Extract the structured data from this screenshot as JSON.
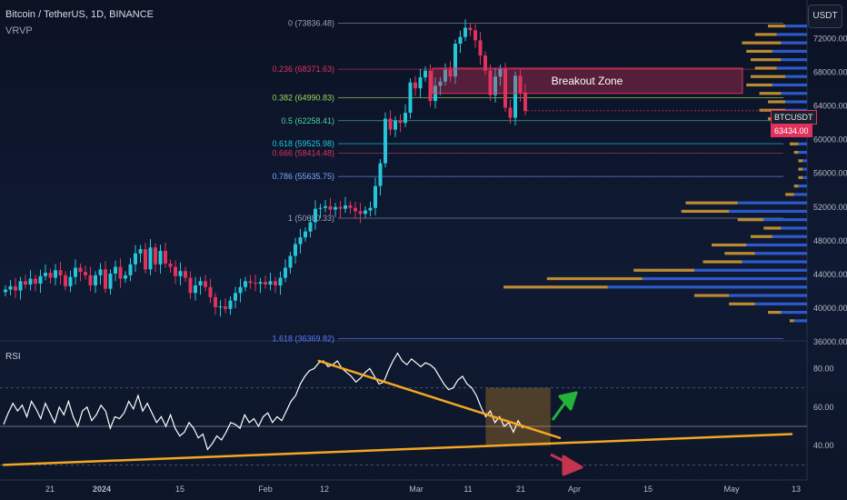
{
  "header": {
    "title": "Bitcoin / TetherUS, 1D, BINANCE",
    "indicator": "VRVP",
    "currency_button": "USDT",
    "symbol_tag": "BTCUSDT",
    "price_tag": "63434.00"
  },
  "annotations": {
    "breakout_zone": "Breakout Zone",
    "rsi_label": "RSI"
  },
  "colors": {
    "bull": "#26c6da",
    "bear": "#e0325c",
    "trend": "#f5a623",
    "vol_up": "#3366e6",
    "vol_down": "#d9a032",
    "arrow_up": "#22b33a",
    "arrow_down": "#c4344f"
  },
  "chart_data": [
    {
      "type": "candlestick",
      "title": "Bitcoin / TetherUS, 1D, BINANCE",
      "ylim": [
        36000,
        74000
      ],
      "y_ticks": [
        "36000.00",
        "40000.00",
        "44000.00",
        "48000.00",
        "52000.00",
        "56000.00",
        "60000.00",
        "64000.00",
        "68000.00",
        "72000.00"
      ],
      "x_ticks": [
        "21",
        "2024",
        "15",
        "Feb",
        "12",
        "Mar",
        "11",
        "21",
        "Apr",
        "15",
        "May",
        "13"
      ],
      "fib_levels": [
        {
          "label": "0 (73836.48)",
          "value": 73836.48,
          "color": "#9aa1ad"
        },
        {
          "label": "0.236 (68371.63)",
          "value": 68371.63,
          "color": "#e0325c"
        },
        {
          "label": "0.382 (64990.83)",
          "value": 64990.83,
          "color": "#9fd65a"
        },
        {
          "label": "0.5 (62258.41)",
          "value": 62258.41,
          "color": "#4fd1a5"
        },
        {
          "label": "0.618 (59525.98)",
          "value": 59525.98,
          "color": "#26c6da"
        },
        {
          "label": "0.666 (58414.48)",
          "value": 58414.48,
          "color": "#e0325c"
        },
        {
          "label": "0.786 (55635.75)",
          "value": 55635.75,
          "color": "#7fa6ff"
        },
        {
          "label": "1 (50680.33)",
          "value": 50680.33,
          "color": "#9aa1ad"
        },
        {
          "label": "1.618 (36369.82)",
          "value": 36369.82,
          "color": "#5b7cff"
        }
      ],
      "breakout_zone": {
        "low": 65500,
        "high": 68500
      },
      "last_price": 63434.0,
      "closes": [
        42200,
        42600,
        42100,
        43200,
        42800,
        43500,
        42900,
        43800,
        44200,
        43600,
        44500,
        43900,
        42600,
        43700,
        44800,
        44300,
        43900,
        42700,
        43900,
        44600,
        42300,
        44100,
        44900,
        43500,
        43900,
        45200,
        46500,
        47000,
        44600,
        47200,
        45200,
        46800,
        45300,
        44900,
        43800,
        44400,
        43600,
        41800,
        42700,
        43200,
        42500,
        41300,
        40100,
        40200,
        39900,
        40900,
        41800,
        42500,
        43200,
        43000,
        42900,
        43100,
        42800,
        43200,
        42700,
        43600,
        44800,
        46200,
        47600,
        48400,
        49100,
        50200,
        51800,
        51900,
        52100,
        51700,
        52000,
        51800,
        52200,
        51900,
        51500,
        51200,
        51600,
        51900,
        54500,
        57200,
        62500,
        61200,
        62300,
        62000,
        63200,
        66800,
        66100,
        67400,
        68200,
        64600,
        66400,
        66900,
        68300,
        67500,
        71400,
        72200,
        73300,
        73000,
        71800,
        70000,
        68200,
        65300,
        67500,
        68400,
        63800,
        62600,
        67600,
        65600,
        63400
      ],
      "volume_profile": [
        {
          "price": 73500,
          "up": 0.05,
          "down": 0.04
        },
        {
          "price": 72500,
          "up": 0.07,
          "down": 0.05
        },
        {
          "price": 71500,
          "up": 0.06,
          "down": 0.09
        },
        {
          "price": 70500,
          "up": 0.08,
          "down": 0.06
        },
        {
          "price": 69500,
          "up": 0.06,
          "down": 0.07
        },
        {
          "price": 68500,
          "up": 0.07,
          "down": 0.05
        },
        {
          "price": 67500,
          "up": 0.05,
          "down": 0.08
        },
        {
          "price": 66500,
          "up": 0.08,
          "down": 0.06
        },
        {
          "price": 65500,
          "up": 0.06,
          "down": 0.05
        },
        {
          "price": 64500,
          "up": 0.05,
          "down": 0.04
        },
        {
          "price": 63500,
          "up": 0.05,
          "down": 0.06
        },
        {
          "price": 62500,
          "up": 0.06,
          "down": 0.03
        },
        {
          "price": 61500,
          "up": 0.04,
          "down": 0.03
        },
        {
          "price": 60500,
          "up": 0.03,
          "down": 0.02
        },
        {
          "price": 59500,
          "up": 0.02,
          "down": 0.02
        },
        {
          "price": 58500,
          "up": 0.02,
          "down": 0.01
        },
        {
          "price": 57500,
          "up": 0.01,
          "down": 0.01
        },
        {
          "price": 56500,
          "up": 0.01,
          "down": 0.01
        },
        {
          "price": 55500,
          "up": 0.01,
          "down": 0.01
        },
        {
          "price": 54500,
          "up": 0.02,
          "down": 0.01
        },
        {
          "price": 53500,
          "up": 0.03,
          "down": 0.02
        },
        {
          "price": 52500,
          "up": 0.16,
          "down": 0.12
        },
        {
          "price": 51500,
          "up": 0.18,
          "down": 0.11
        },
        {
          "price": 50500,
          "up": 0.1,
          "down": 0.06
        },
        {
          "price": 49500,
          "up": 0.06,
          "down": 0.04
        },
        {
          "price": 48500,
          "up": 0.08,
          "down": 0.05
        },
        {
          "price": 47500,
          "up": 0.14,
          "down": 0.08
        },
        {
          "price": 46500,
          "up": 0.12,
          "down": 0.07
        },
        {
          "price": 45500,
          "up": 0.15,
          "down": 0.09
        },
        {
          "price": 44500,
          "up": 0.26,
          "down": 0.14
        },
        {
          "price": 43500,
          "up": 0.38,
          "down": 0.22
        },
        {
          "price": 42500,
          "up": 0.46,
          "down": 0.24
        },
        {
          "price": 41500,
          "up": 0.18,
          "down": 0.08
        },
        {
          "price": 40500,
          "up": 0.12,
          "down": 0.06
        },
        {
          "price": 39500,
          "up": 0.06,
          "down": 0.03
        },
        {
          "price": 38500,
          "up": 0.03,
          "down": 0.01
        }
      ]
    },
    {
      "type": "line",
      "title": "RSI",
      "ylim": [
        25,
        92
      ],
      "y_ticks": [
        "40.00",
        "60.00",
        "80.00"
      ],
      "bands": [
        70,
        50,
        30
      ],
      "values": [
        51,
        57,
        62,
        58,
        61,
        55,
        63,
        59,
        54,
        62,
        57,
        52,
        60,
        56,
        63,
        55,
        50,
        58,
        60,
        53,
        56,
        61,
        58,
        49,
        55,
        54,
        57,
        63,
        59,
        66,
        58,
        62,
        57,
        52,
        55,
        50,
        56,
        49,
        45,
        47,
        52,
        49,
        44,
        46,
        38,
        41,
        45,
        43,
        47,
        52,
        51,
        49,
        56,
        52,
        54,
        50,
        55,
        57,
        52,
        55,
        53,
        58,
        63,
        66,
        72,
        76,
        79,
        80,
        83,
        84,
        81,
        82,
        84,
        80,
        78,
        76,
        73,
        75,
        78,
        80,
        76,
        72,
        73,
        79,
        84,
        88,
        84,
        82,
        85,
        83,
        81,
        83,
        82,
        80,
        76,
        72,
        69,
        70,
        74,
        76,
        72,
        70,
        66,
        60,
        55,
        58,
        52,
        55,
        50,
        52,
        47,
        53,
        49
      ],
      "trendlines": [
        {
          "from": {
            "i": 68,
            "v": 84
          },
          "to": {
            "i": 120,
            "v": 44
          }
        },
        {
          "from": {
            "i": 0,
            "v": 30
          },
          "to": {
            "i": 170,
            "v": 46
          }
        }
      ]
    }
  ]
}
